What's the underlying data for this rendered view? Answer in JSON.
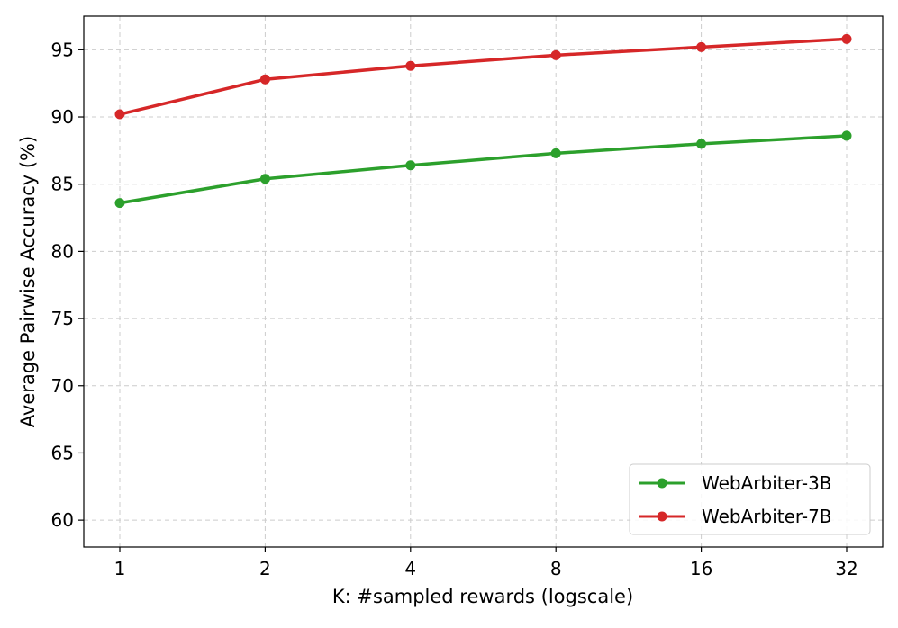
{
  "chart_data": {
    "type": "line",
    "title": "",
    "xlabel": "K: #sampled rewards (logscale)",
    "ylabel": "Average Pairwise Accuracy (%)",
    "x_scale": "log2",
    "categories": [
      "1",
      "2",
      "4",
      "8",
      "16",
      "32"
    ],
    "x": [
      1,
      2,
      4,
      8,
      16,
      32
    ],
    "ylim": [
      58,
      97.5
    ],
    "yticks": [
      60,
      65,
      70,
      75,
      80,
      85,
      90,
      95
    ],
    "grid": true,
    "legend_position": "bottom-right",
    "series": [
      {
        "name": "WebArbiter-3B",
        "color": "#2ca02c",
        "values": [
          83.6,
          85.4,
          86.4,
          87.3,
          88.0,
          88.6
        ]
      },
      {
        "name": "WebArbiter-7B",
        "color": "#d62728",
        "values": [
          90.2,
          92.8,
          93.8,
          94.6,
          95.2,
          95.8
        ]
      }
    ]
  }
}
